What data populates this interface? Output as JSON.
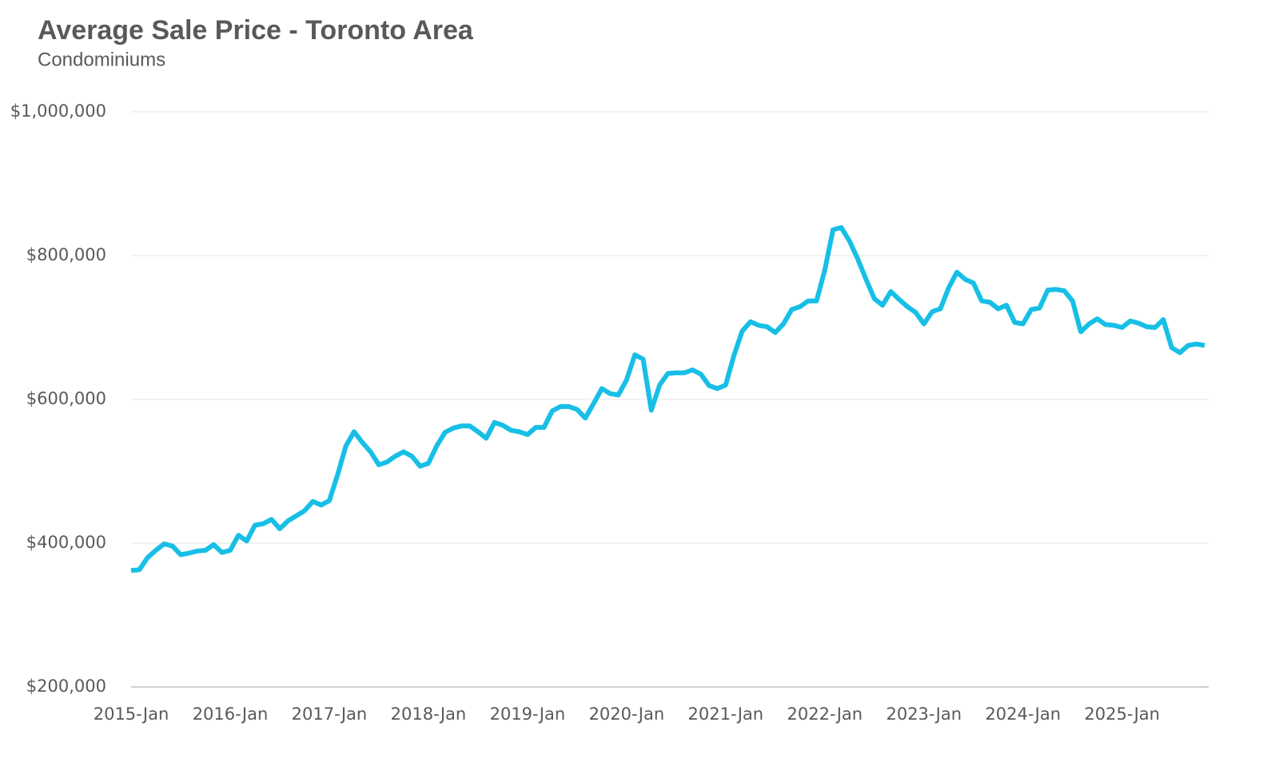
{
  "chart_data": {
    "type": "line",
    "title": "Average Sale Price - Toronto Area",
    "subtitle": "Condominiums",
    "categories": [
      "2015-Jan",
      null,
      null,
      null,
      null,
      null,
      null,
      null,
      null,
      null,
      null,
      null,
      "2016-Jan",
      null,
      null,
      null,
      null,
      null,
      null,
      null,
      null,
      null,
      null,
      null,
      "2017-Jan",
      null,
      null,
      null,
      null,
      null,
      null,
      null,
      null,
      null,
      null,
      null,
      "2018-Jan",
      null,
      null,
      null,
      null,
      null,
      null,
      null,
      null,
      null,
      null,
      null,
      "2019-Jan",
      null,
      null,
      null,
      null,
      null,
      null,
      null,
      null,
      null,
      null,
      null,
      "2020-Jan",
      null,
      null,
      null,
      null,
      null,
      null,
      null,
      null,
      null,
      null,
      null,
      "2021-Jan",
      null,
      null,
      null,
      null,
      null,
      null,
      null,
      null,
      null,
      null,
      null,
      "2022-Jan",
      null,
      null,
      null,
      null,
      null,
      null,
      null,
      null,
      null,
      null,
      null,
      "2023-Jan",
      null,
      null,
      null,
      null,
      null,
      null,
      null,
      null,
      null,
      null,
      null,
      "2024-Jan",
      null,
      null,
      null,
      null,
      null,
      null,
      null,
      null,
      null,
      null,
      null,
      "2025-Jan",
      null,
      null,
      null,
      null,
      null,
      null,
      null,
      null,
      null,
      null
    ],
    "series": [
      {
        "color": "#17bfe6",
        "values": [
          362000,
          363000,
          380000,
          390000,
          399000,
          396000,
          384000,
          386000,
          389000,
          390000,
          398000,
          387000,
          390000,
          411000,
          403000,
          425000,
          427000,
          433000,
          420000,
          431000,
          438000,
          445000,
          458000,
          453000,
          459000,
          495000,
          535000,
          555000,
          540000,
          527000,
          509000,
          513000,
          521000,
          527000,
          521000,
          507000,
          511000,
          535000,
          554000,
          560000,
          563000,
          563000,
          555000,
          546000,
          568000,
          564000,
          557000,
          555000,
          551000,
          561000,
          561000,
          584000,
          590000,
          590000,
          586000,
          574000,
          594000,
          615000,
          608000,
          606000,
          627000,
          662000,
          656000,
          585000,
          620000,
          636000,
          637000,
          637000,
          641000,
          635000,
          619000,
          615000,
          620000,
          661000,
          695000,
          708000,
          703000,
          701000,
          693000,
          705000,
          725000,
          729000,
          737000,
          737000,
          780000,
          836000,
          839000,
          820000,
          795000,
          767000,
          740000,
          731000,
          750000,
          739000,
          729000,
          721000,
          705000,
          722000,
          726000,
          755000,
          777000,
          767000,
          762000,
          737000,
          735000,
          726000,
          731000,
          707000,
          705000,
          725000,
          727000,
          752000,
          753000,
          751000,
          737000,
          694000,
          705000,
          712000,
          704000,
          703000,
          700000,
          709000,
          706000,
          701000,
          700000,
          711000,
          672000,
          665000,
          675000,
          677000,
          675000
        ]
      }
    ],
    "ylim": [
      200000,
      1000000
    ],
    "yticks": [
      {
        "value": 200000,
        "label": "$200,000"
      },
      {
        "value": 400000,
        "label": "$400,000"
      },
      {
        "value": 600000,
        "label": "$600,000"
      },
      {
        "value": 800000,
        "label": "$800,000"
      },
      {
        "value": 1000000,
        "label": "$1,000,000"
      }
    ],
    "grid": true
  }
}
